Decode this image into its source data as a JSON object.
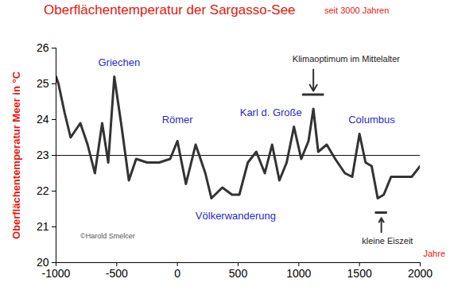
{
  "chart_data": {
    "type": "line",
    "title": "Oberflächentemperatur der Sargasso-See",
    "subtitle": "seit 3000 Jahren",
    "x_label": "Jahre",
    "y_label": "Oberflächentemperatur Meer in °C",
    "x": [
      -1000,
      -980,
      -930,
      -880,
      -800,
      -740,
      -680,
      -620,
      -570,
      -520,
      -460,
      -400,
      -340,
      -250,
      -150,
      -60,
      0,
      70,
      150,
      230,
      280,
      370,
      450,
      510,
      580,
      650,
      720,
      780,
      840,
      900,
      960,
      1020,
      1080,
      1120,
      1160,
      1230,
      1300,
      1380,
      1440,
      1500,
      1550,
      1600,
      1650,
      1700,
      1760,
      1850,
      1930,
      2000
    ],
    "series": [
      {
        "name": "Oberflächentemperatur",
        "color": "#333333",
        "values": [
          25.2,
          25.0,
          24.2,
          23.5,
          23.9,
          23.3,
          22.5,
          23.9,
          22.8,
          25.2,
          23.8,
          22.3,
          22.9,
          22.8,
          22.8,
          22.9,
          23.4,
          22.2,
          23.3,
          22.5,
          21.8,
          22.1,
          21.9,
          21.9,
          22.8,
          23.1,
          22.5,
          23.3,
          22.3,
          22.8,
          23.8,
          22.9,
          23.4,
          24.3,
          23.1,
          23.3,
          22.9,
          22.5,
          22.4,
          23.6,
          22.8,
          22.7,
          21.8,
          21.9,
          22.4,
          22.4,
          22.4,
          22.7
        ]
      }
    ],
    "xlim": [
      -1000,
      2000
    ],
    "xticks": [
      -1000,
      -500,
      0,
      500,
      1000,
      1500,
      2000
    ],
    "ylim": [
      20,
      26
    ],
    "yticks": [
      20,
      21,
      22,
      23,
      24,
      25,
      26
    ],
    "grid": false,
    "hline": 23,
    "annotations": [
      {
        "text": "Griechen",
        "x": -480,
        "y": 25.6,
        "color": "#2a2ad0"
      },
      {
        "text": "Römer",
        "x": 0,
        "y": 24.0,
        "color": "#2a2ad0"
      },
      {
        "text": "Karl d. Große",
        "x": 770,
        "y": 24.2,
        "color": "#2a2ad0"
      },
      {
        "text": "Columbus",
        "x": 1600,
        "y": 24.0,
        "color": "#2a2ad0"
      },
      {
        "text": "Völkerwanderung",
        "x": 480,
        "y": 21.3,
        "color": "#2a2ad0"
      },
      {
        "text": "Klimaoptimum im Mittelalter",
        "x": 1390,
        "y": 25.7,
        "color": "#222222"
      },
      {
        "text": "kleine Eiszeit",
        "x": 1730,
        "y": 20.6,
        "color": "#222222"
      },
      {
        "text": "©Harold Smelcer",
        "x": -575,
        "y": 20.75,
        "color": "#555555"
      }
    ],
    "arrows": [
      {
        "x1": 1120,
        "y1": 25.4,
        "x2": 1120,
        "y2": 24.8
      },
      {
        "x1": 1680,
        "y1": 20.85,
        "x2": 1680,
        "y2": 21.25
      }
    ],
    "brackets": [
      {
        "x1": 1030,
        "x2": 1210,
        "y": 24.7
      },
      {
        "x1": 1630,
        "x2": 1730,
        "y": 21.4
      }
    ]
  }
}
